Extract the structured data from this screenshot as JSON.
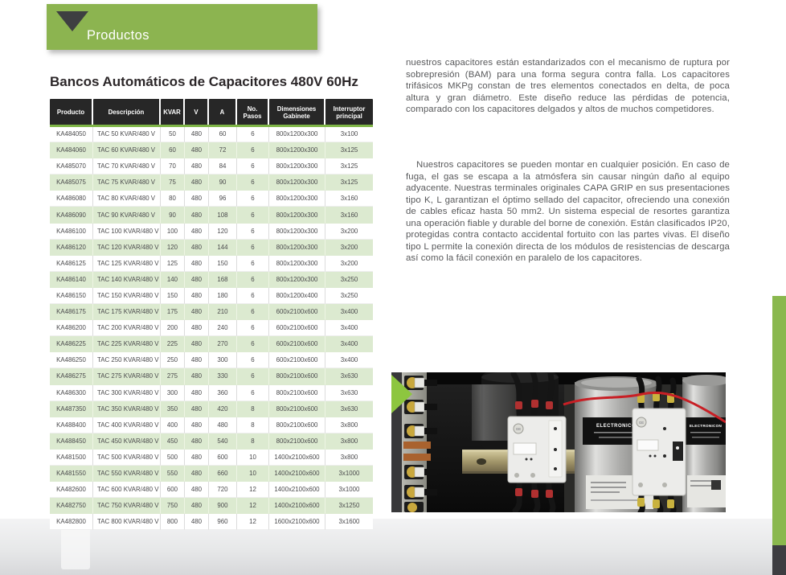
{
  "banner": {
    "label": "Productos"
  },
  "page": {
    "title": "Bancos Automáticos de Capacitores 480V 60Hz"
  },
  "table": {
    "headers": [
      "Producto",
      "Descripción",
      "KVAR",
      "V",
      "A",
      "No. Pasos",
      "Dimensiones Gabinete",
      "Interruptor principal"
    ],
    "rows": [
      [
        "KA484050",
        "TAC 50 KVAR/480 V",
        "50",
        "480",
        "60",
        "6",
        "800x1200x300",
        "3x100"
      ],
      [
        "KA484060",
        "TAC 60 KVAR/480 V",
        "60",
        "480",
        "72",
        "6",
        "800x1200x300",
        "3x125"
      ],
      [
        "KA485070",
        "TAC 70 KVAR/480 V",
        "70",
        "480",
        "84",
        "6",
        "800x1200x300",
        "3x125"
      ],
      [
        "KA485075",
        "TAC 75 KVAR/480 V",
        "75",
        "480",
        "90",
        "6",
        "800x1200x300",
        "3x125"
      ],
      [
        "KA486080",
        "TAC 80 KVAR/480 V",
        "80",
        "480",
        "96",
        "6",
        "800x1200x300",
        "3x160"
      ],
      [
        "KA486090",
        "TAC 90 KVAR/480 V",
        "90",
        "480",
        "108",
        "6",
        "800x1200x300",
        "3x160"
      ],
      [
        "KA486100",
        "TAC 100 KVAR/480 V",
        "100",
        "480",
        "120",
        "6",
        "800x1200x300",
        "3x200"
      ],
      [
        "KA486120",
        "TAC 120 KVAR/480 V",
        "120",
        "480",
        "144",
        "6",
        "800x1200x300",
        "3x200"
      ],
      [
        "KA486125",
        "TAC 125 KVAR/480 V",
        "125",
        "480",
        "150",
        "6",
        "800x1200x300",
        "3x200"
      ],
      [
        "KA486140",
        "TAC 140 KVAR/480 V",
        "140",
        "480",
        "168",
        "6",
        "800x1200x300",
        "3x250"
      ],
      [
        "KA486150",
        "TAC 150 KVAR/480 V",
        "150",
        "480",
        "180",
        "6",
        "800x1200x400",
        "3x250"
      ],
      [
        "KA486175",
        "TAC 175 KVAR/480 V",
        "175",
        "480",
        "210",
        "6",
        "600x2100x600",
        "3x400"
      ],
      [
        "KA486200",
        "TAC 200 KVAR/480 V",
        "200",
        "480",
        "240",
        "6",
        "600x2100x600",
        "3x400"
      ],
      [
        "KA486225",
        "TAC 225 KVAR/480 V",
        "225",
        "480",
        "270",
        "6",
        "600x2100x600",
        "3x400"
      ],
      [
        "KA486250",
        "TAC 250 KVAR/480 V",
        "250",
        "480",
        "300",
        "6",
        "600x2100x600",
        "3x400"
      ],
      [
        "KA486275",
        "TAC 275 KVAR/480 V",
        "275",
        "480",
        "330",
        "6",
        "800x2100x600",
        "3x630"
      ],
      [
        "KA486300",
        "TAC 300 KVAR/480 V",
        "300",
        "480",
        "360",
        "6",
        "800x2100x600",
        "3x630"
      ],
      [
        "KA487350",
        "TAC 350 KVAR/480 V",
        "350",
        "480",
        "420",
        "8",
        "800x2100x600",
        "3x630"
      ],
      [
        "KA488400",
        "TAC 400 KVAR/480 V",
        "400",
        "480",
        "480",
        "8",
        "800x2100x600",
        "3x800"
      ],
      [
        "KA488450",
        "TAC 450 KVAR/480 V",
        "450",
        "480",
        "540",
        "8",
        "800x2100x600",
        "3x800"
      ],
      [
        "KA481500",
        "TAC 500 KVAR/480 V",
        "500",
        "480",
        "600",
        "10",
        "1400x2100x600",
        "3x800"
      ],
      [
        "KA481550",
        "TAC 550 KVAR/480 V",
        "550",
        "480",
        "660",
        "10",
        "1400x2100x600",
        "3x1000"
      ],
      [
        "KA482600",
        "TAC 600 KVAR/480 V",
        "600",
        "480",
        "720",
        "12",
        "1400x2100x600",
        "3x1000"
      ],
      [
        "KA482750",
        "TAC 750 KVAR/480 V",
        "750",
        "480",
        "900",
        "12",
        "1400x2100x600",
        "3x1250"
      ],
      [
        "KA482800",
        "TAC 800 KVAR/480 V",
        "800",
        "480",
        "960",
        "12",
        "1600x2100x600",
        "3x1600"
      ]
    ]
  },
  "article": {
    "paragraph1": "nuestros capacitores están estandarizados con el mecanismo de ruptura por sobrepresión (BAM) para una forma segura contra falla. Los capacitores trifásicos MKPg constan de tres elementos conectados en delta, de poca altura y gran diámetro. Este diseño reduce las pérdidas de potencia, comparado con los capacitores delgados y altos de muchos competidores.",
    "paragraph2": "Nuestros capacitores se pueden montar en cualquier posición. En caso de fuga, el gas se escapa a la atmósfera sin causar ningún daño al equipo adyacente. Nuestras terminales originales CAPA GRIP en sus presentaciones tipo K, L garantizan el óptimo sellado del capacitor, ofreciendo una conexión de cables eficaz hasta 50 mm2. Un sistema especial de resortes garantiza una operación fiable y durable del borne de conexión. Están clasificados IP20, protegidas contra contacto accidental fortuito con las partes vivas. El diseño tipo L permite la conexión directa de los módulos de resistencias de descarga así como la fácil conexión en paralelo de los capacitores."
  },
  "photo": {
    "capacitor_label": "ELECTRONICON",
    "contactor_brand": "GE"
  },
  "colors": {
    "accent_green": "#8cb450",
    "photo_arrow_green": "#8dc63f",
    "table_header_dark": "#272727",
    "table_rule_green": "#7eb546",
    "table_alt_row": "#dcead0",
    "right_bar_green": "#8ab84e",
    "corner_dark": "#3d3d41",
    "wire_red": "#c81f25"
  }
}
